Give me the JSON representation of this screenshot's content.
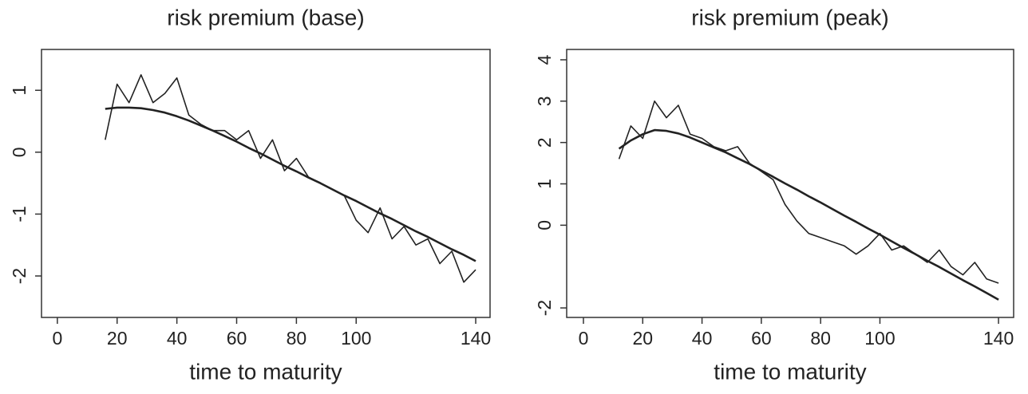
{
  "chart_data": [
    {
      "type": "line",
      "title": "risk premium (base)",
      "x_label": "time to maturity",
      "x": [
        16,
        20,
        24,
        28,
        32,
        36,
        40,
        44,
        48,
        52,
        56,
        60,
        64,
        68,
        72,
        76,
        80,
        84,
        88,
        92,
        96,
        100,
        104,
        108,
        112,
        116,
        120,
        124,
        128,
        132,
        136,
        140
      ],
      "series": [
        {
          "color": "#222222",
          "values": [
            0.2,
            1.1,
            0.8,
            1.25,
            0.8,
            0.95,
            1.2,
            0.6,
            0.45,
            0.35,
            0.35,
            0.2,
            0.35,
            -0.1,
            0.2,
            -0.3,
            -0.1,
            -0.4,
            -0.5,
            -0.6,
            -0.7,
            -1.1,
            -1.3,
            -0.9,
            -1.4,
            -1.2,
            -1.5,
            -1.4,
            -1.8,
            -1.6,
            -2.1,
            -1.9
          ]
        },
        {
          "color": "#222222",
          "values": [
            0.7,
            0.72,
            0.72,
            0.71,
            0.68,
            0.64,
            0.58,
            0.51,
            0.43,
            0.35,
            0.26,
            0.17,
            0.07,
            -0.02,
            -0.12,
            -0.22,
            -0.31,
            -0.41,
            -0.5,
            -0.6,
            -0.7,
            -0.79,
            -0.89,
            -0.99,
            -1.08,
            -1.18,
            -1.28,
            -1.37,
            -1.47,
            -1.57,
            -1.66,
            -1.76
          ]
        }
      ],
      "xlim": [
        -5.3,
        144.8
      ],
      "xticks": [
        0,
        20,
        40,
        60,
        80,
        100,
        140
      ],
      "ylim": [
        -2.67,
        1.66
      ],
      "yticks": [
        1,
        0,
        -1,
        -2
      ]
    },
    {
      "type": "line",
      "title": "risk premium (peak)",
      "x_label": "time to maturity",
      "x": [
        12,
        16,
        20,
        24,
        28,
        32,
        36,
        40,
        44,
        48,
        52,
        56,
        60,
        64,
        68,
        72,
        76,
        80,
        84,
        88,
        92,
        96,
        100,
        104,
        108,
        112,
        116,
        120,
        124,
        128,
        132,
        136,
        140
      ],
      "series": [
        {
          "color": "#222222",
          "values": [
            1.6,
            2.4,
            2.1,
            3.0,
            2.6,
            2.9,
            2.2,
            2.1,
            1.9,
            1.8,
            1.9,
            1.5,
            1.3,
            1.1,
            0.5,
            0.1,
            -0.2,
            -0.3,
            -0.4,
            -0.5,
            -0.7,
            -0.5,
            -0.2,
            -0.6,
            -0.5,
            -0.7,
            -0.9,
            -0.6,
            -1.0,
            -1.2,
            -0.9,
            -1.3,
            -1.4
          ]
        },
        {
          "color": "#222222",
          "values": [
            1.85,
            2.05,
            2.2,
            2.3,
            2.28,
            2.22,
            2.12,
            2.0,
            1.88,
            1.76,
            1.62,
            1.48,
            1.32,
            1.17,
            1.01,
            0.86,
            0.7,
            0.55,
            0.39,
            0.23,
            0.08,
            -0.08,
            -0.23,
            -0.39,
            -0.55,
            -0.7,
            -0.86,
            -1.01,
            -1.17,
            -1.33,
            -1.48,
            -1.64,
            -1.8
          ]
        }
      ],
      "xlim": [
        -5.65,
        145.1
      ],
      "xticks": [
        0,
        20,
        40,
        60,
        80,
        100,
        140
      ],
      "ylim": [
        -2.23,
        4.25
      ],
      "yticks": [
        4,
        3,
        2,
        1,
        0,
        -2
      ]
    }
  ]
}
